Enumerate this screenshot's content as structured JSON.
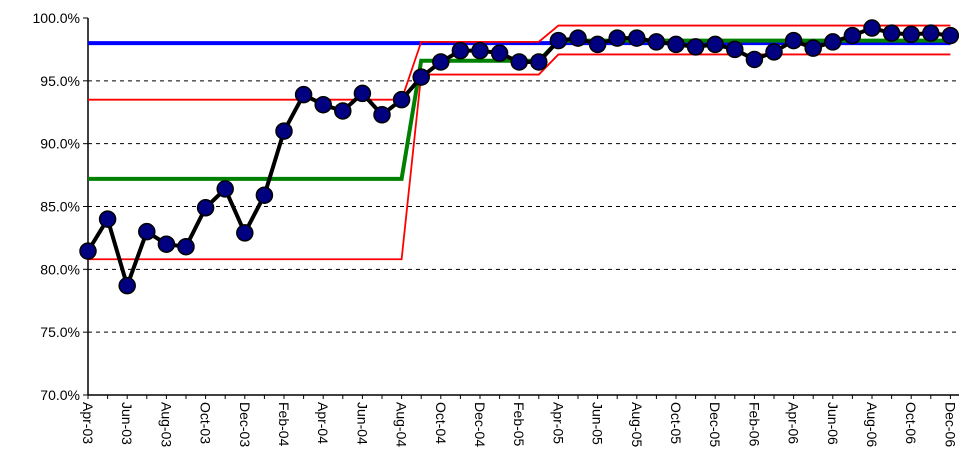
{
  "chart_data": {
    "type": "line",
    "categories": [
      "Apr-03",
      null,
      "Jun-03",
      null,
      "Aug-03",
      null,
      "Oct-03",
      null,
      "Dec-03",
      null,
      "Feb-04",
      null,
      "Apr-04",
      null,
      "Jun-04",
      null,
      "Aug-04",
      null,
      "Oct-04",
      null,
      "Dec-04",
      null,
      "Feb-05",
      null,
      "Apr-05",
      null,
      "Jun-05",
      null,
      "Aug-05",
      null,
      "Oct-05",
      null,
      "Dec-05",
      null,
      "Feb-06",
      null,
      "Apr-06",
      null,
      "Jun-06",
      null,
      "Aug-06",
      null,
      "Oct-06",
      null,
      "Dec-06"
    ],
    "series": [
      {
        "color": "#0000ff",
        "values": [
          98,
          98,
          98,
          98,
          98,
          98,
          98,
          98,
          98,
          98,
          98,
          98,
          98,
          98,
          98,
          98,
          98,
          98,
          98,
          98,
          98,
          98,
          98,
          98,
          98,
          98,
          98,
          98,
          98,
          98,
          98,
          98,
          98,
          98,
          98,
          98,
          98,
          98,
          98,
          98,
          98,
          98,
          98,
          98,
          98
        ]
      },
      {
        "color": "#ff0000",
        "values": [
          93.5,
          93.5,
          93.5,
          93.5,
          93.5,
          93.5,
          93.5,
          93.5,
          93.5,
          93.5,
          93.5,
          93.5,
          93.5,
          93.5,
          93.5,
          93.5,
          93.5,
          98.1,
          98.1,
          98.1,
          98.1,
          98.1,
          98.1,
          98.1,
          99.4,
          99.4,
          99.4,
          99.4,
          99.4,
          99.4,
          99.4,
          99.4,
          99.4,
          99.4,
          99.4,
          99.4,
          99.4,
          99.4,
          99.4,
          99.4,
          99.4,
          99.4,
          99.4,
          99.4,
          99.4
        ]
      },
      {
        "color": "#ff0000",
        "values": [
          80.8,
          80.8,
          80.8,
          80.8,
          80.8,
          80.8,
          80.8,
          80.8,
          80.8,
          80.8,
          80.8,
          80.8,
          80.8,
          80.8,
          80.8,
          80.8,
          80.8,
          95.5,
          95.5,
          95.5,
          95.5,
          95.5,
          95.5,
          95.5,
          97.1,
          97.1,
          97.1,
          97.1,
          97.1,
          97.1,
          97.1,
          97.1,
          97.1,
          97.1,
          97.1,
          97.1,
          97.1,
          97.1,
          97.1,
          97.1,
          97.1,
          97.1,
          97.1,
          97.1,
          97.1
        ]
      },
      {
        "color": "#008000",
        "values": [
          87.2,
          87.2,
          87.2,
          87.2,
          87.2,
          87.2,
          87.2,
          87.2,
          87.2,
          87.2,
          87.2,
          87.2,
          87.2,
          87.2,
          87.2,
          87.2,
          87.2,
          96.6,
          96.6,
          96.6,
          96.6,
          96.6,
          96.6,
          96.6,
          98.2,
          98.2,
          98.2,
          98.2,
          98.2,
          98.2,
          98.2,
          98.2,
          98.2,
          98.2,
          98.2,
          98.2,
          98.2,
          98.2,
          98.2,
          98.2,
          98.2,
          98.2,
          98.2,
          98.2,
          98.2
        ]
      },
      {
        "color": "#000000",
        "marker_color": "#000080",
        "values": [
          81.45,
          84.0,
          78.7,
          83.0,
          82.0,
          81.8,
          84.9,
          86.4,
          82.9,
          85.9,
          91.0,
          93.9,
          93.1,
          92.6,
          94.0,
          92.3,
          93.5,
          95.3,
          96.5,
          97.4,
          97.4,
          97.2,
          96.5,
          96.5,
          98.2,
          98.4,
          97.9,
          98.4,
          98.4,
          98.1,
          97.9,
          97.7,
          97.9,
          97.5,
          96.7,
          97.3,
          98.2,
          97.6,
          98.1,
          98.6,
          99.2,
          98.8,
          98.7,
          98.8,
          98.6
        ]
      }
    ],
    "ylim": [
      70,
      100
    ],
    "yticks": [
      {
        "value": 70,
        "label": "70.0%"
      },
      {
        "value": 75,
        "label": "75.0%"
      },
      {
        "value": 80,
        "label": "80.0%"
      },
      {
        "value": 85,
        "label": "85.0%"
      },
      {
        "value": 90,
        "label": "90.0%"
      },
      {
        "value": 95,
        "label": "95.0%"
      },
      {
        "value": 100,
        "label": "100.0%"
      }
    ],
    "grid": true
  }
}
